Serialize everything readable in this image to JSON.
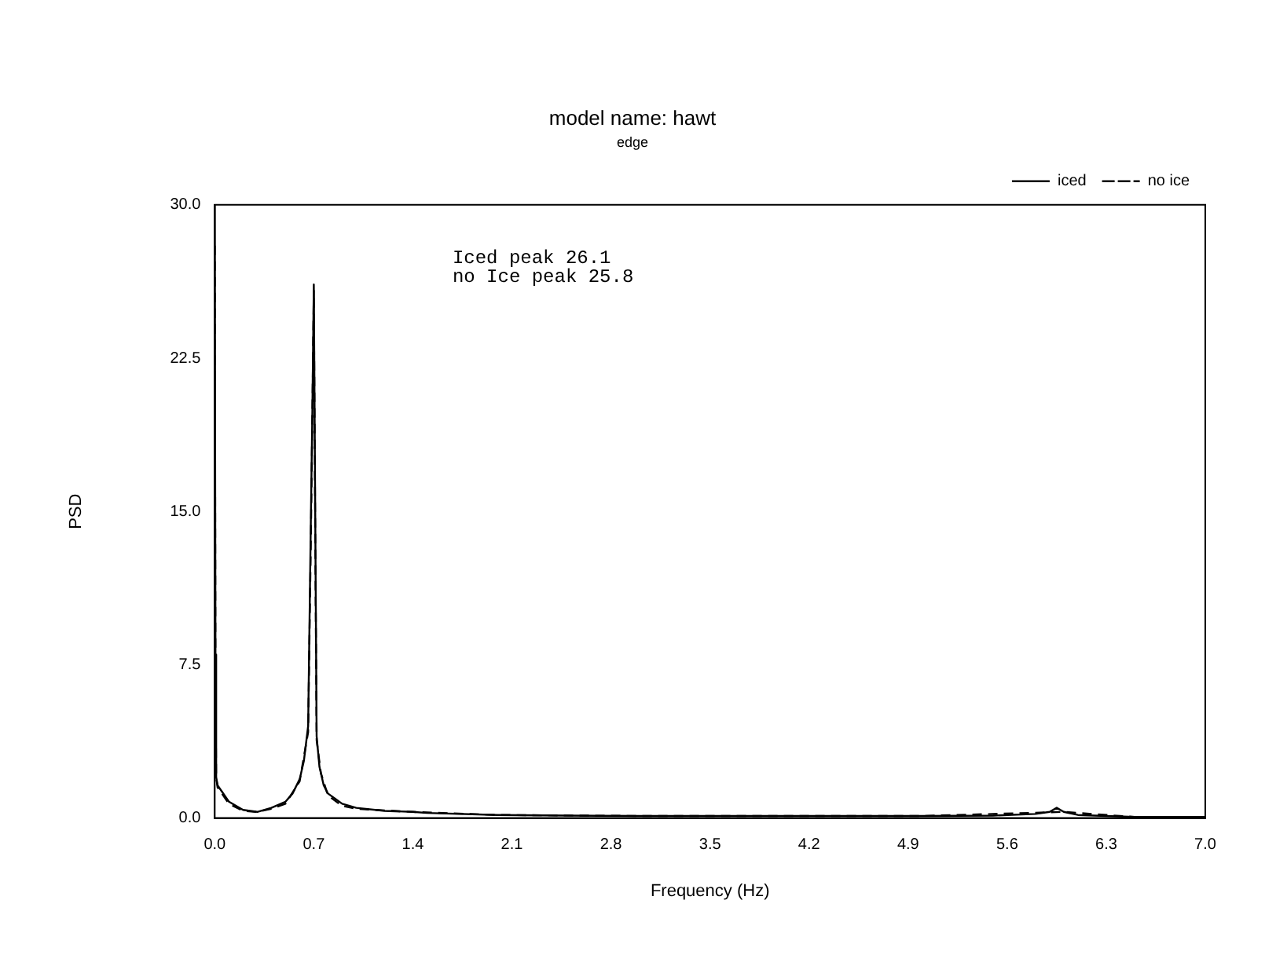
{
  "chart_data": {
    "type": "line",
    "title": "model name: hawt",
    "subtitle": "edge",
    "xlabel": "Frequency (Hz)",
    "ylabel": "PSD",
    "annotations": [
      "Iced peak 26.1",
      "no Ice peak 25.8"
    ],
    "xlim": [
      0,
      7
    ],
    "xticks": [
      {
        "value": 0,
        "label": "0.0"
      },
      0.7,
      1.4,
      2.1,
      2.8,
      3.5,
      4.2,
      4.9,
      5.6,
      6.3,
      {
        "value": 7,
        "label": "7.0"
      }
    ],
    "ylim": [
      0,
      30
    ],
    "yticks": [
      {
        "value": 0,
        "label": "0.0"
      },
      7.5,
      {
        "value": 15,
        "label": "15.0"
      },
      22.5,
      {
        "value": 30,
        "label": "30.0"
      }
    ],
    "grid": false,
    "legend": "top right",
    "marker": "none",
    "series": [
      {
        "name": "iced",
        "color": "#000000",
        "line_style": "solid",
        "x": [
          0,
          0.005,
          0.01,
          0.02,
          0.05,
          0.1,
          0.15,
          0.2,
          0.3,
          0.4,
          0.5,
          0.55,
          0.6,
          0.63,
          0.66,
          0.68,
          0.69,
          0.7,
          0.71,
          0.72,
          0.74,
          0.77,
          0.8,
          0.9,
          1.0,
          1.2,
          1.4,
          1.5,
          2.0,
          2.5,
          3.0,
          3.5,
          4.0,
          4.5,
          5.0,
          5.5,
          5.8,
          5.9,
          5.95,
          6.0,
          6.1,
          6.5,
          7.0
        ],
        "values": [
          30,
          8,
          2,
          1.6,
          1.3,
          0.8,
          0.6,
          0.4,
          0.3,
          0.5,
          0.8,
          1.2,
          1.9,
          2.8,
          4.5,
          15,
          20,
          26.1,
          15,
          4,
          2.5,
          1.6,
          1.2,
          0.7,
          0.5,
          0.35,
          0.3,
          0.25,
          0.15,
          0.12,
          0.1,
          0.1,
          0.1,
          0.1,
          0.1,
          0.12,
          0.2,
          0.3,
          0.5,
          0.3,
          0.15,
          0.05,
          0.05
        ]
      },
      {
        "name": "no ice",
        "color": "#000000",
        "line_style": "dashed",
        "x": [
          0,
          0.005,
          0.01,
          0.02,
          0.05,
          0.1,
          0.2,
          0.3,
          0.4,
          0.5,
          0.6,
          0.66,
          0.68,
          0.7,
          0.71,
          0.72,
          0.75,
          0.8,
          0.9,
          1.0,
          1.4,
          2.0,
          3.0,
          4.0,
          5.0,
          6.0,
          6.5,
          7.0
        ],
        "values": [
          28,
          7,
          2,
          1.5,
          1.2,
          0.7,
          0.35,
          0.3,
          0.45,
          0.7,
          1.8,
          4.2,
          14,
          25.8,
          14,
          3.8,
          2.2,
          1.1,
          0.6,
          0.45,
          0.3,
          0.15,
          0.1,
          0.1,
          0.1,
          0.3,
          0.05,
          0.05
        ]
      }
    ]
  }
}
